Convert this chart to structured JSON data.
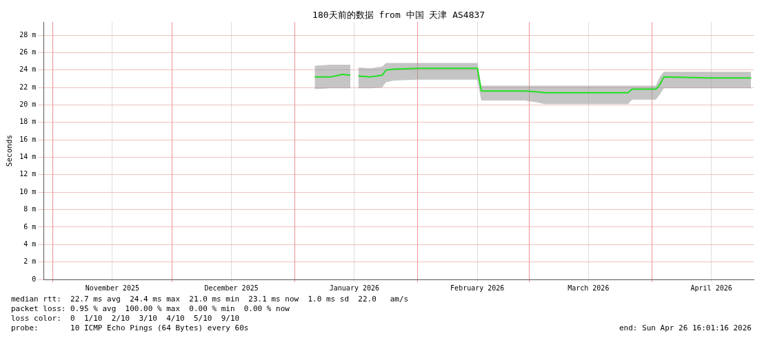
{
  "chart_data": {
    "type": "line",
    "title": "180天前的数据 from 中国 天津 AS4837",
    "ylabel": "Seconds",
    "xlim": [
      "2025-10-29T16:01",
      "2026-04-26T16:01"
    ],
    "xticks": [
      {
        "value": "2025-11-01",
        "label": null
      },
      {
        "value": "2025-11-16",
        "label": "November 2025"
      },
      {
        "value": "2025-12-01",
        "label": null
      },
      {
        "value": "2025-12-16",
        "label": "December 2025"
      },
      {
        "value": "2026-01-01",
        "label": null
      },
      {
        "value": "2026-01-16",
        "label": "January 2026"
      },
      {
        "value": "2026-02-01",
        "label": null
      },
      {
        "value": "2026-02-16",
        "label": "February 2026"
      },
      {
        "value": "2026-03-01",
        "label": null
      },
      {
        "value": "2026-03-16",
        "label": "March 2026"
      },
      {
        "value": "2026-04-01",
        "label": null
      },
      {
        "value": "2026-04-16",
        "label": "April 2026"
      }
    ],
    "ylim": [
      0,
      29.5
    ],
    "yticks": [
      0,
      {
        "value": 2,
        "label": "2 m"
      },
      {
        "value": 4,
        "label": "4 m"
      },
      {
        "value": 6,
        "label": "6 m"
      },
      {
        "value": 8,
        "label": "8 m"
      },
      {
        "value": 10,
        "label": "10 m"
      },
      {
        "value": 12,
        "label": "12 m"
      },
      {
        "value": 14,
        "label": "14 m"
      },
      {
        "value": 16,
        "label": "16 m"
      },
      {
        "value": 18,
        "label": "18 m"
      },
      {
        "value": 20,
        "label": "20 m"
      },
      {
        "value": 22,
        "label": "22 m"
      },
      {
        "value": 24,
        "label": "24 m"
      },
      {
        "value": 26,
        "label": "26 m"
      },
      {
        "value": 28,
        "label": "28 m"
      }
    ],
    "grid": true,
    "legend": false,
    "marker": "none",
    "line_style": "solid",
    "x": [
      "2026-01-06",
      "2026-01-10",
      "2026-01-13",
      "2026-01-15",
      "2026-01-16",
      "2026-01-17",
      "2026-01-20",
      "2026-01-23",
      "2026-01-24",
      "2026-01-26",
      "2026-02-01",
      "2026-02-10",
      "2026-02-16",
      "2026-02-17",
      "2026-02-28",
      "2026-03-03",
      "2026-03-05",
      "2026-03-15",
      "2026-03-26",
      "2026-03-27",
      "2026-04-02",
      "2026-04-03",
      "2026-04-04",
      "2026-04-15",
      "2026-04-26"
    ],
    "series": [
      {
        "color": "#20e020",
        "values": [
          23.2,
          23.2,
          23.5,
          23.4,
          null,
          23.3,
          23.2,
          23.4,
          24.0,
          24.1,
          24.2,
          24.2,
          24.2,
          21.6,
          21.6,
          21.5,
          21.4,
          21.4,
          21.4,
          21.8,
          21.8,
          22.3,
          23.2,
          23.1,
          23.1
        ],
        "lower": [
          21.8,
          21.9,
          21.9,
          21.9,
          null,
          21.9,
          21.9,
          22.0,
          22.6,
          22.8,
          22.9,
          22.9,
          22.9,
          20.5,
          20.5,
          20.3,
          20.1,
          20.1,
          20.1,
          20.6,
          20.6,
          21.2,
          21.9,
          21.9,
          21.9
        ],
        "upper": [
          24.5,
          24.6,
          24.6,
          24.6,
          null,
          24.3,
          24.2,
          24.4,
          24.8,
          24.8,
          24.8,
          24.8,
          24.8,
          22.2,
          22.2,
          22.2,
          22.2,
          22.2,
          22.2,
          22.2,
          22.2,
          23.2,
          23.8,
          23.8,
          23.8
        ]
      }
    ],
    "annotations": [
      "median rtt:  22.7 ms avg  24.4 ms max  21.0 ms min  23.1 ms now  1.0 ms sd  22.0   am/s",
      "packet loss: 0.95 % avg  100.00 % max  0.00 % min  0.00 % now",
      "loss color:  0  1/10  2/10  3/10  4/10  5/10  9/10",
      "probe:       10 ICMP Echo Pings (64 Bytes) every 60s",
      "end: Sun Apr 26 16:01:16 2026"
    ]
  }
}
